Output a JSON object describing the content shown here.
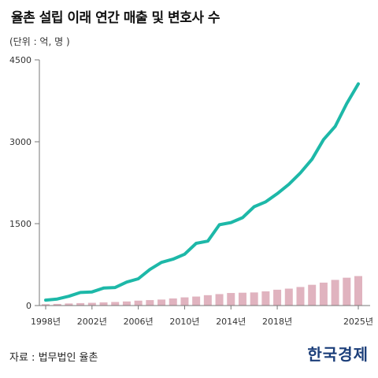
{
  "header": {
    "title": "율촌 설립 이래 연간 매출 및 변호사 수",
    "unit": "(단위 : 억, 명 )"
  },
  "footer": {
    "source": "자료 : 법무법인 율촌",
    "logo": "한국경제"
  },
  "colors": {
    "line": "#1db8a8",
    "bar": "#e0b3bf",
    "axis": "#777777",
    "grid": "#dddddd"
  },
  "chart_data": {
    "type": "bar+line",
    "title": "율촌 설립 이래 연간 매출 및 변호사 수",
    "x": [
      1998,
      1999,
      2000,
      2001,
      2002,
      2003,
      2004,
      2005,
      2006,
      2007,
      2008,
      2009,
      2010,
      2011,
      2012,
      2013,
      2014,
      2015,
      2016,
      2017,
      2018,
      2019,
      2020,
      2021,
      2022,
      2023,
      2024,
      2025
    ],
    "x_tick_labels": [
      "1998년",
      "2002년",
      "2006년",
      "2010년",
      "2014년",
      "2018년",
      "2025년"
    ],
    "x_tick_years": [
      1998,
      2002,
      2006,
      2010,
      2014,
      2018,
      2025
    ],
    "y_ticks": [
      0,
      1500,
      3000,
      4500
    ],
    "ylim": [
      0,
      4500
    ],
    "series": [
      {
        "type": "line",
        "values": [
          100,
          120,
          170,
          240,
          250,
          320,
          330,
          430,
          490,
          660,
          790,
          850,
          940,
          1140,
          1180,
          1480,
          1520,
          1610,
          1810,
          1900,
          2050,
          2220,
          2430,
          2680,
          3040,
          3280,
          3700,
          4060
        ]
      },
      {
        "type": "bar",
        "values": [
          25,
          30,
          38,
          45,
          50,
          58,
          65,
          75,
          90,
          100,
          110,
          130,
          150,
          165,
          190,
          210,
          230,
          235,
          240,
          260,
          290,
          310,
          340,
          380,
          420,
          470,
          510,
          540
        ]
      }
    ],
    "grid": false
  }
}
